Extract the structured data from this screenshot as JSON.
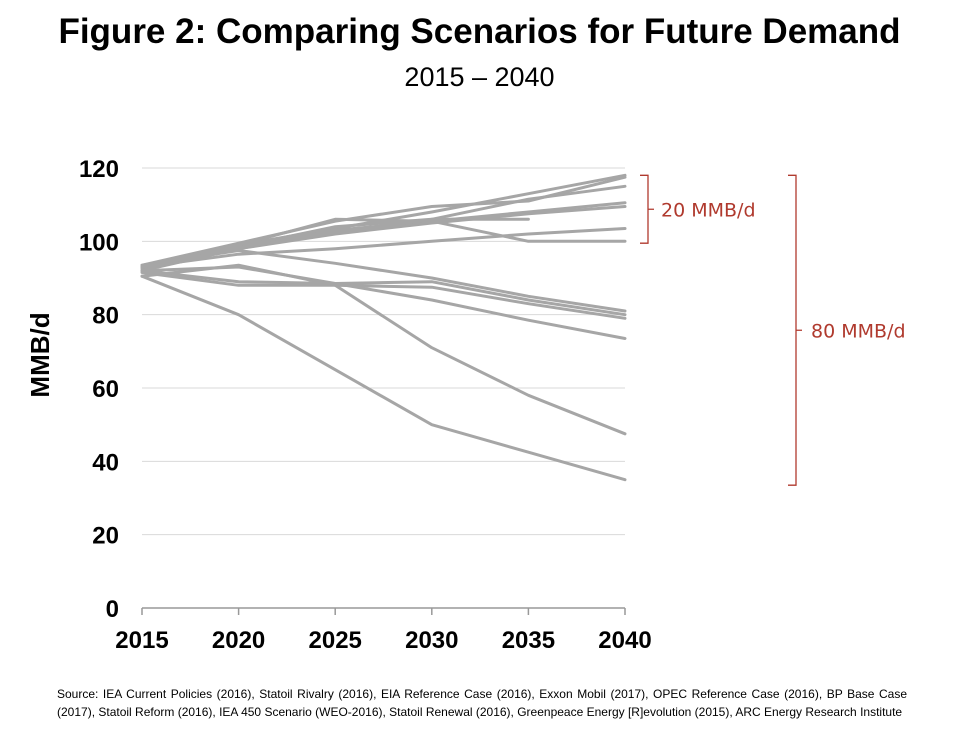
{
  "title": "Figure 2: Comparing Scenarios for Future Demand",
  "subtitle": "2015 – 2040",
  "source": "Source: IEA Current Policies (2016), Statoil Rivalry (2016), EIA Reference Case (2016), Exxon Mobil (2017), OPEC Reference Case (2016), BP Base Case (2017), Statoil Reform (2016), IEA 450 Scenario (WEO-2016), Statoil Renewal (2016), Greenpeace Energy [R]evolution (2015), ARC Energy Research Institute",
  "colors": {
    "line": "#a6a6a6",
    "bracket": "#b03a2e",
    "grid": "#d9d9d9"
  },
  "chart_data": {
    "type": "line",
    "title": "Figure 2: Comparing Scenarios for Future Demand",
    "xlabel": "",
    "ylabel": "MMB/d",
    "x": [
      2015,
      2020,
      2025,
      2030,
      2035,
      2040
    ],
    "xlim": [
      2015,
      2040
    ],
    "ylim": [
      0,
      120
    ],
    "yticks": [
      0,
      20,
      40,
      60,
      80,
      100,
      120
    ],
    "xticks": [
      2015,
      2020,
      2025,
      2030,
      2035,
      2040
    ],
    "grid": "horizontal",
    "series": [
      {
        "values": [
          93.5,
          99.5,
          105.5,
          109.5,
          111.0,
          117.5
        ]
      },
      {
        "values": [
          93.0,
          99.0,
          103.5,
          108.0,
          113.0,
          118.0
        ]
      },
      {
        "values": [
          93.0,
          98.5,
          104.0,
          106.0,
          111.5,
          115.0
        ]
      },
      {
        "values": [
          92.5,
          98.0,
          103.0,
          105.5,
          108.0,
          110.5
        ]
      },
      {
        "values": [
          92.0,
          98.0,
          102.0,
          105.0,
          107.5,
          109.5
        ]
      },
      {
        "values": [
          93.0,
          99.0,
          106.0,
          105.5,
          100.0,
          100.0
        ]
      },
      {
        "values": [
          93.0,
          96.5,
          98.0,
          100.0,
          102.0,
          103.5
        ]
      },
      {
        "values": [
          93.0,
          98.0,
          102.5,
          106.0,
          106.0,
          null
        ]
      },
      {
        "values": [
          93.5,
          97.5,
          94.0,
          90.0,
          85.0,
          81.0
        ]
      },
      {
        "values": [
          92.0,
          89.0,
          88.5,
          89.0,
          84.0,
          80.0
        ]
      },
      {
        "values": [
          91.5,
          88.0,
          88.0,
          87.5,
          83.0,
          79.0
        ]
      },
      {
        "values": [
          92.0,
          93.0,
          88.5,
          84.0,
          78.5,
          73.5
        ]
      },
      {
        "values": [
          90.5,
          93.5,
          88.0,
          71.0,
          58.0,
          47.5
        ]
      },
      {
        "values": [
          90.5,
          80.0,
          65.0,
          50.0,
          42.5,
          35.0
        ]
      }
    ],
    "annotations": [
      {
        "label": "20 MMB/d",
        "from": 99.5,
        "to": 118
      },
      {
        "label": "80 MMB/d",
        "from": 33.5,
        "to": 118
      }
    ]
  }
}
